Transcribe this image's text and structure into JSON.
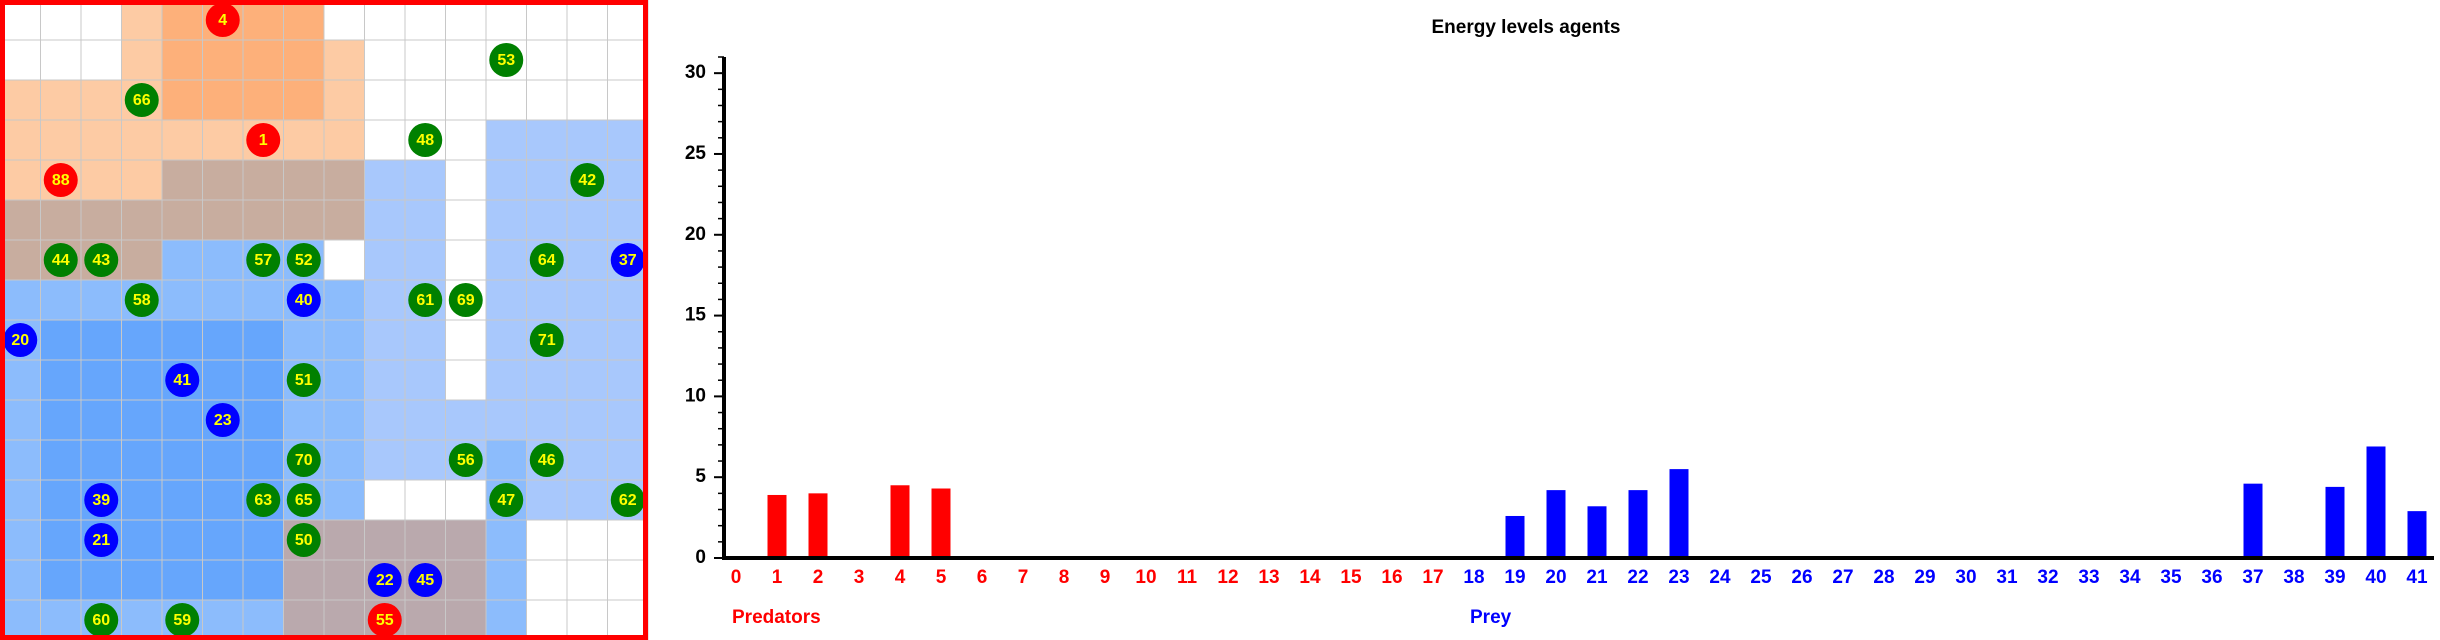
{
  "grid": {
    "agents": [
      {
        "label": "4",
        "color": "#ff0000"
      },
      {
        "label": "53",
        "color": "#008000"
      },
      {
        "label": "66",
        "color": "#008000"
      },
      {
        "label": "1",
        "color": "#ff0000"
      },
      {
        "label": "48",
        "color": "#008000"
      },
      {
        "label": "88",
        "color": "#ff0000"
      },
      {
        "label": "42",
        "color": "#008000"
      },
      {
        "label": "44",
        "color": "#008000"
      },
      {
        "label": "43",
        "color": "#008000"
      },
      {
        "label": "57",
        "color": "#008000"
      },
      {
        "label": "52",
        "color": "#008000"
      },
      {
        "label": "64",
        "color": "#008000"
      },
      {
        "label": "37",
        "color": "#0000ff"
      },
      {
        "label": "58",
        "color": "#008000"
      },
      {
        "label": "40",
        "color": "#0000ff"
      },
      {
        "label": "61",
        "color": "#008000"
      },
      {
        "label": "69",
        "color": "#008000"
      },
      {
        "label": "20",
        "color": "#0000ff"
      },
      {
        "label": "71",
        "color": "#008000"
      },
      {
        "label": "41",
        "color": "#0000ff"
      },
      {
        "label": "51",
        "color": "#008000"
      },
      {
        "label": "23",
        "color": "#0000ff"
      },
      {
        "label": "70",
        "color": "#008000"
      },
      {
        "label": "56",
        "color": "#008000"
      },
      {
        "label": "46",
        "color": "#008000"
      },
      {
        "label": "39",
        "color": "#0000ff"
      },
      {
        "label": "63",
        "color": "#008000"
      },
      {
        "label": "65",
        "color": "#008000"
      },
      {
        "label": "47",
        "color": "#008000"
      },
      {
        "label": "62",
        "color": "#008000"
      },
      {
        "label": "21",
        "color": "#0000ff"
      },
      {
        "label": "50",
        "color": "#008000"
      },
      {
        "label": "22",
        "color": "#0000ff"
      },
      {
        "label": "45",
        "color": "#0000ff"
      },
      {
        "label": "60",
        "color": "#008000"
      },
      {
        "label": "59",
        "color": "#008000"
      },
      {
        "label": "55",
        "color": "#ff0000"
      }
    ]
  },
  "chart_data": {
    "type": "bar",
    "title": "Energy levels agents",
    "categories": [
      "0",
      "1",
      "2",
      "3",
      "4",
      "5",
      "6",
      "7",
      "8",
      "9",
      "10",
      "11",
      "12",
      "13",
      "14",
      "15",
      "16",
      "17",
      "18",
      "19",
      "20",
      "21",
      "22",
      "23",
      "24",
      "25",
      "26",
      "27",
      "28",
      "29",
      "30",
      "31",
      "32",
      "33",
      "34",
      "35",
      "36",
      "37",
      "38",
      "39",
      "40",
      "41"
    ],
    "series": [
      {
        "name": "Predators",
        "color": "#ff0000",
        "values": [
          0,
          3.9,
          4.0,
          0,
          4.5,
          4.3,
          0,
          0,
          0,
          0,
          0,
          0,
          0,
          0,
          0,
          0,
          0,
          0,
          null,
          null,
          null,
          null,
          null,
          null,
          null,
          null,
          null,
          null,
          null,
          null,
          null,
          null,
          null,
          null,
          null,
          null,
          null,
          null,
          null,
          null,
          null,
          null
        ]
      },
      {
        "name": "Prey",
        "color": "#0000ff",
        "values": [
          null,
          null,
          null,
          null,
          null,
          null,
          null,
          null,
          null,
          null,
          null,
          null,
          null,
          null,
          null,
          null,
          null,
          null,
          0,
          2.6,
          4.2,
          3.2,
          4.2,
          5.5,
          0,
          0,
          0,
          0,
          0,
          0,
          0,
          0,
          0,
          0,
          0,
          0,
          0,
          4.6,
          0,
          4.4,
          6.9,
          2.9
        ]
      }
    ],
    "ylim": [
      0,
      31
    ],
    "yticks": [
      0,
      5,
      10,
      15,
      20,
      25,
      30
    ],
    "yticks_minor": [
      1,
      2,
      3,
      4,
      6,
      7,
      8,
      9,
      11,
      12,
      13,
      14,
      16,
      17,
      18,
      19,
      21,
      22,
      23,
      24,
      26,
      27,
      28,
      29,
      31
    ]
  }
}
